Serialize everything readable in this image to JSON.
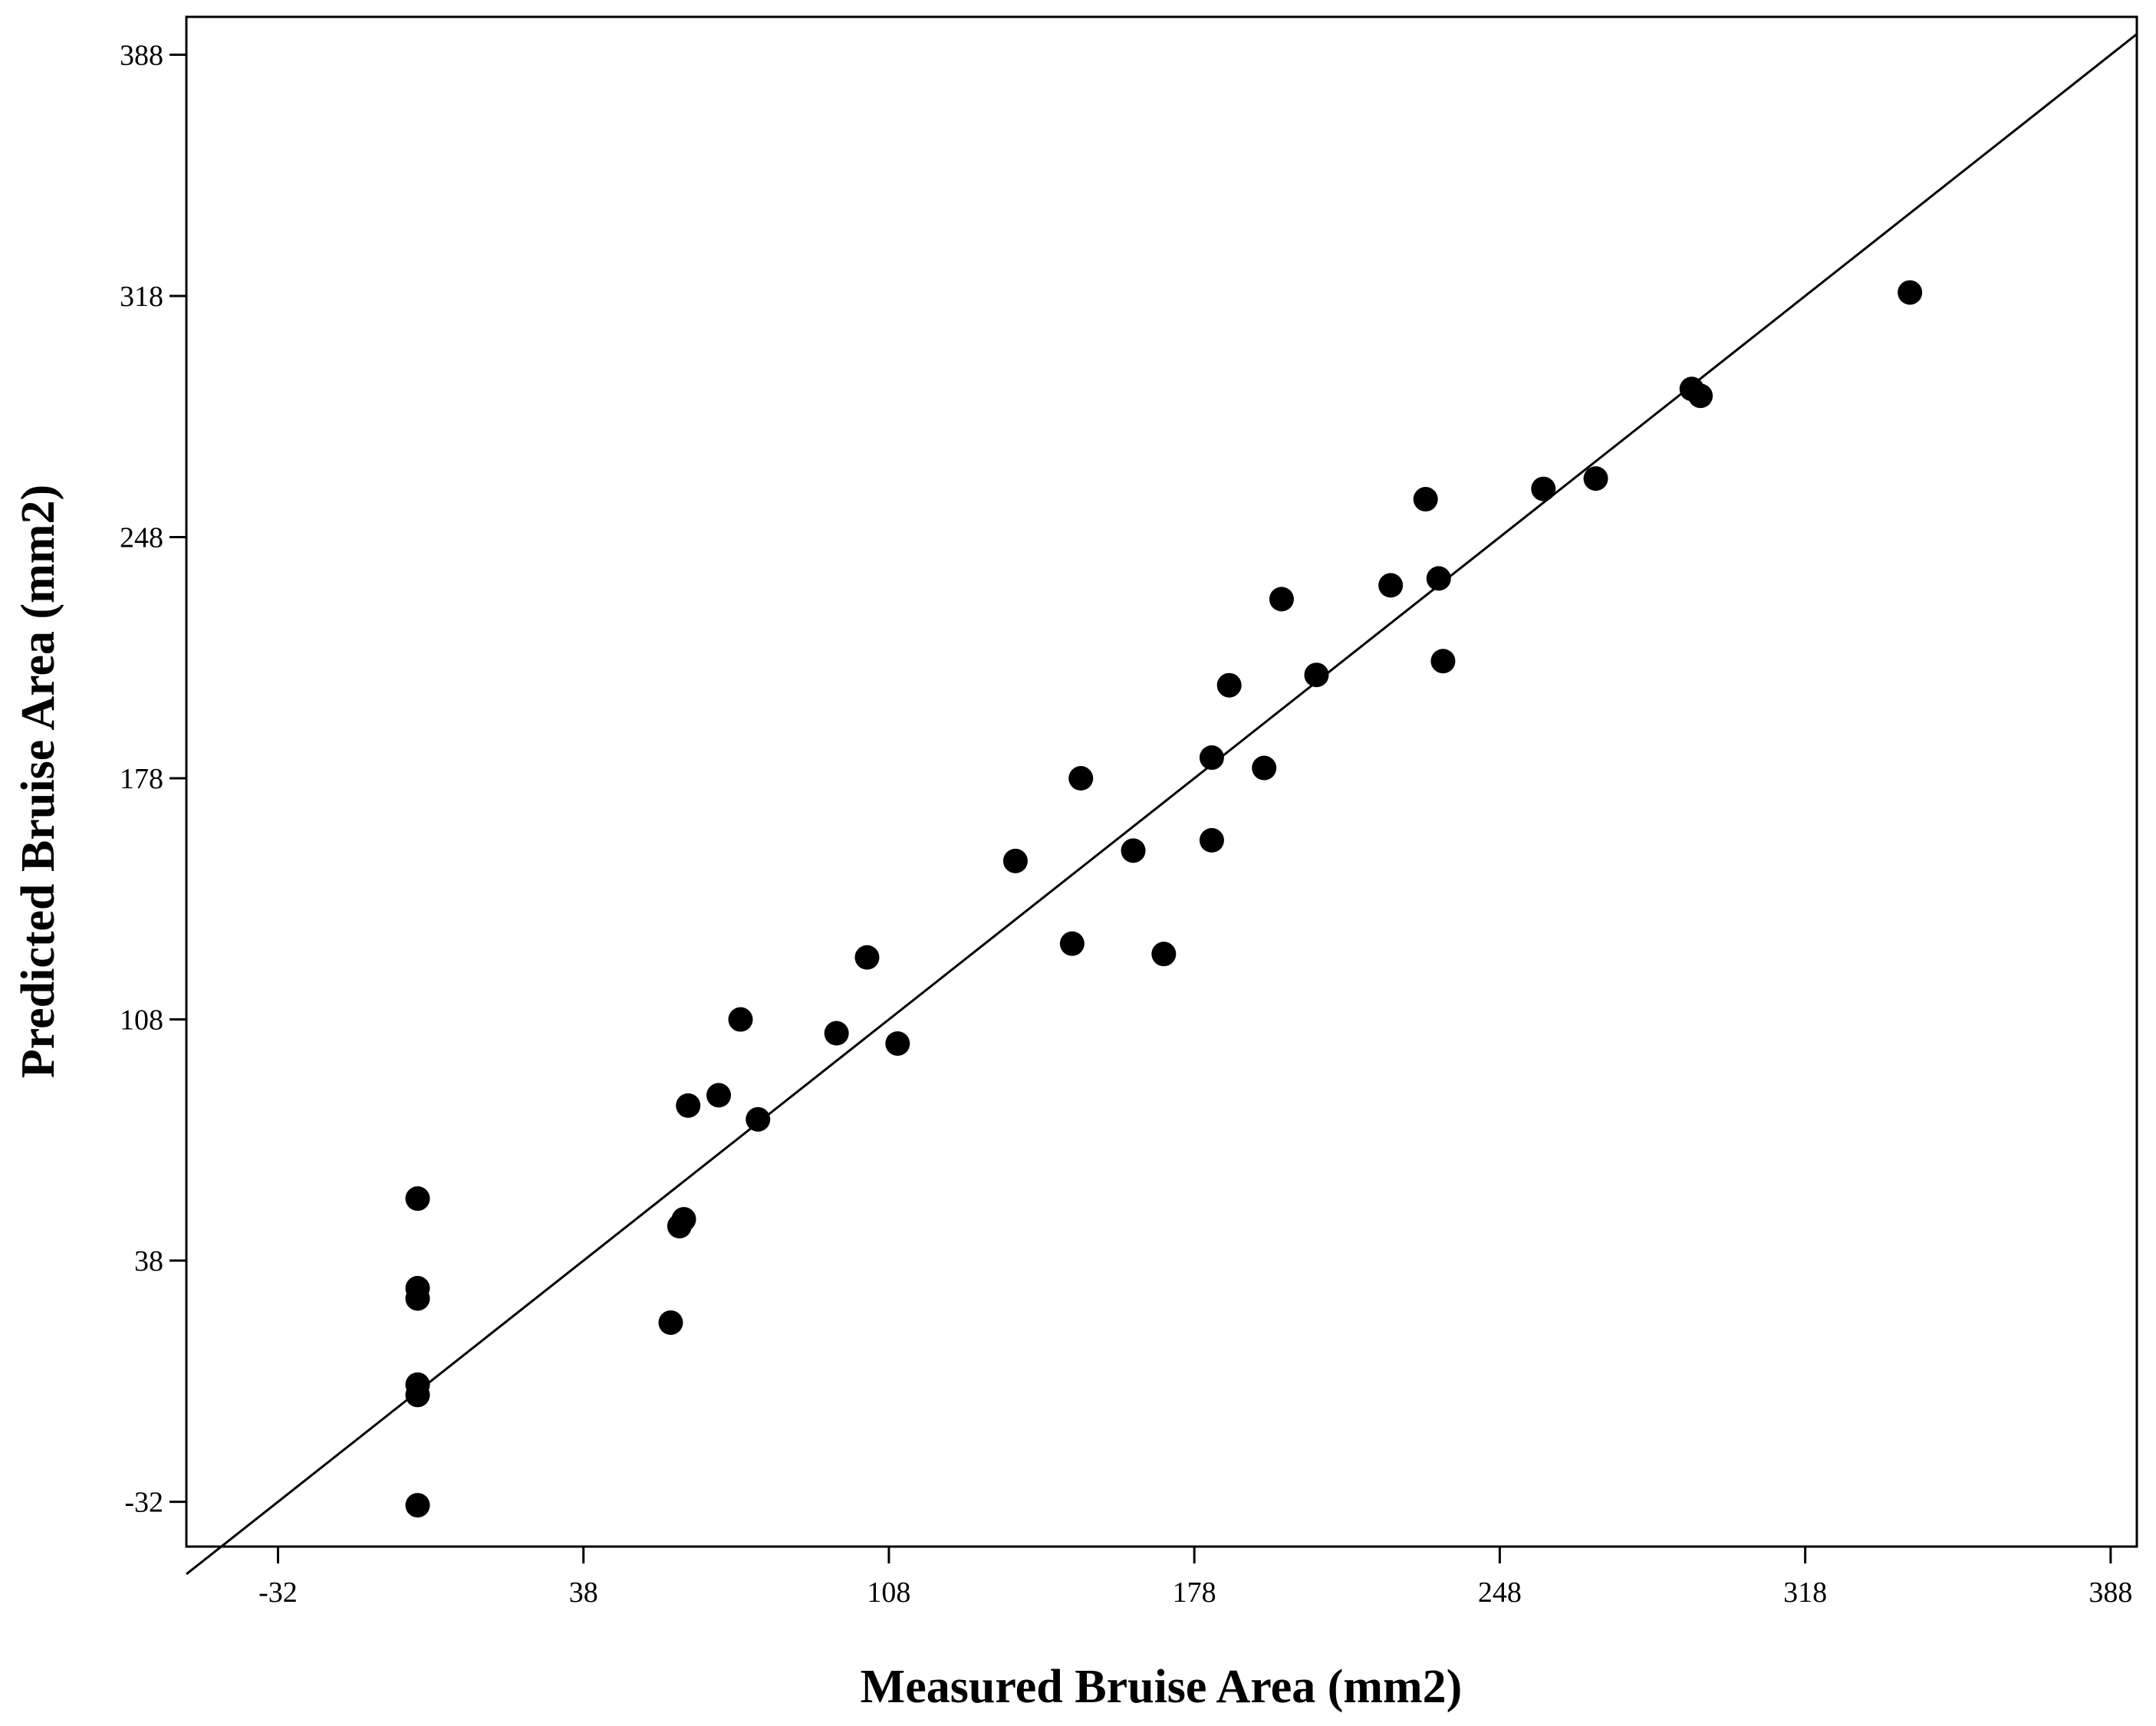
{
  "chart_data": {
    "type": "scatter",
    "title": "",
    "xlabel": "Measured Bruise Area (mm2)",
    "ylabel": "Predicted Bruise Area (mm2)",
    "xlim": [
      -53,
      394
    ],
    "ylim": [
      -45,
      399
    ],
    "xticks": [
      -32,
      38,
      108,
      178,
      248,
      318,
      388
    ],
    "yticks": [
      -32,
      38,
      108,
      178,
      248,
      318,
      388
    ],
    "xtick_labels": [
      "-32",
      "38",
      "108",
      "178",
      "248",
      "318",
      "388"
    ],
    "ytick_labels": [
      "-32",
      "38",
      "108",
      "178",
      "248",
      "318",
      "388"
    ],
    "grid": false,
    "legend": "none",
    "marker_color": "#000000",
    "fit_line": {
      "type": "y=x",
      "x": [
        -53,
        394
      ],
      "y": [
        -53,
        394
      ]
    },
    "series": [
      {
        "points": [
          [
            0,
            56
          ],
          [
            0,
            30
          ],
          [
            0,
            27
          ],
          [
            0,
            2
          ],
          [
            0,
            -1
          ],
          [
            0,
            -33
          ],
          [
            58,
            20
          ],
          [
            60,
            48
          ],
          [
            61,
            50
          ],
          [
            62,
            83
          ],
          [
            69,
            86
          ],
          [
            74,
            108
          ],
          [
            78,
            79
          ],
          [
            96,
            104
          ],
          [
            103,
            126
          ],
          [
            110,
            101
          ],
          [
            137,
            154
          ],
          [
            150,
            130
          ],
          [
            152,
            178
          ],
          [
            164,
            157
          ],
          [
            171,
            127
          ],
          [
            182,
            160
          ],
          [
            182,
            184
          ],
          [
            186,
            205
          ],
          [
            194,
            181
          ],
          [
            198,
            230
          ],
          [
            206,
            208
          ],
          [
            223,
            234
          ],
          [
            231,
            259
          ],
          [
            234,
            236
          ],
          [
            235,
            212
          ],
          [
            258,
            262
          ],
          [
            270,
            265
          ],
          [
            292,
            291
          ],
          [
            294,
            289
          ],
          [
            342,
            319
          ]
        ]
      }
    ]
  }
}
